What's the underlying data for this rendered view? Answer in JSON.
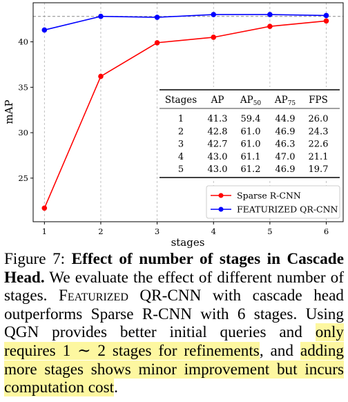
{
  "chart_data": {
    "type": "line",
    "xlabel": "stages",
    "ylabel": "mAP",
    "x": [
      1,
      2,
      3,
      4,
      5,
      6
    ],
    "xlim": [
      0.8,
      6.3
    ],
    "ylim": [
      20.2,
      44.3
    ],
    "xticks": [
      "1",
      "2",
      "3",
      "4",
      "5",
      "6"
    ],
    "yticks": [
      25,
      30,
      35,
      40
    ],
    "ytick_labels": [
      "25",
      "30",
      "35",
      "40"
    ],
    "grid": "x-dashed",
    "reference_line": 42.8,
    "legend_position": "lower-right",
    "series": [
      {
        "name": "Sparse R-CNN",
        "color": "#ff0000",
        "values": [
          21.7,
          36.2,
          39.9,
          40.5,
          41.7,
          42.3
        ]
      },
      {
        "name": "FEATURIZED QR-CNN",
        "color": "#0000ff",
        "values": [
          41.3,
          42.8,
          42.7,
          43.0,
          43.0,
          42.9
        ]
      }
    ],
    "table": {
      "headers": [
        {
          "main": "Stages",
          "sub": ""
        },
        {
          "main": "AP",
          "sub": ""
        },
        {
          "main": "AP",
          "sub": "50"
        },
        {
          "main": "AP",
          "sub": "75"
        },
        {
          "main": "FPS",
          "sub": ""
        }
      ],
      "rows": [
        [
          "1",
          "41.3",
          "59.4",
          "44.9",
          "26.0"
        ],
        [
          "2",
          "42.8",
          "61.0",
          "46.9",
          "24.3"
        ],
        [
          "3",
          "42.7",
          "61.0",
          "46.3",
          "22.6"
        ],
        [
          "4",
          "43.0",
          "61.1",
          "47.0",
          "21.1"
        ],
        [
          "5",
          "43.0",
          "61.2",
          "46.9",
          "19.7"
        ]
      ]
    }
  },
  "caption": {
    "label": "Figure 7:",
    "title": "Effect of number of stages in Cascade Head.",
    "t1": " We evaluate the effect of different number of stages. ",
    "sc_word": "Featurized",
    "t2": " QR-CNN with cascade head outperforms Sparse R-CNN with 6 stages. Using QGN provides better initial queries and ",
    "hl1": "only requires 1 ∼ 2 stages for refinements",
    "t3": ", and ",
    "hl2": "adding more stages shows minor improvement but incurs computation cost",
    "t4": "."
  }
}
